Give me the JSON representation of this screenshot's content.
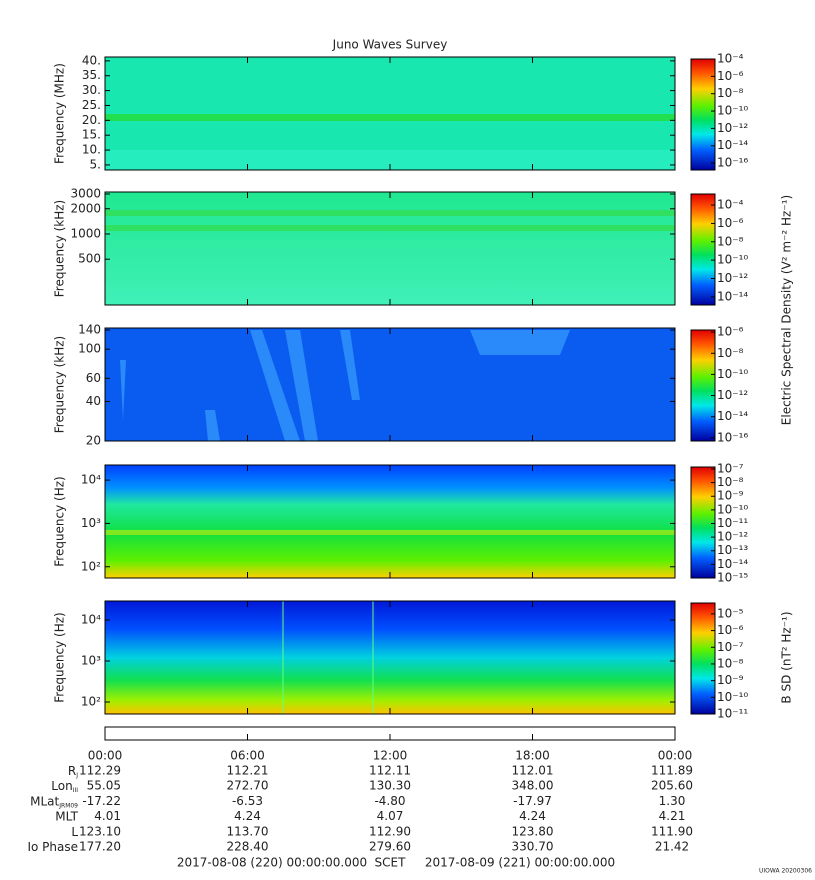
{
  "chart_data": [
    {
      "type": "spectrogram",
      "title": "Juno Waves Survey",
      "ylabel": "Frequency (MHz)",
      "log_y": false,
      "ylim": [
        3.3,
        41.3
      ],
      "yticks": [
        {
          "value": 5,
          "label": "5."
        },
        {
          "value": 10,
          "label": "10."
        },
        {
          "value": 15,
          "label": "15."
        },
        {
          "value": 20,
          "label": "20."
        },
        {
          "value": 25,
          "label": "25."
        },
        {
          "value": 30,
          "label": "30."
        },
        {
          "value": 35,
          "label": "35."
        },
        {
          "value": 40,
          "label": "40."
        }
      ],
      "colorbar": {
        "log": true,
        "lim": [
          1.6e-17,
          0.0001
        ],
        "ticks": [
          {
            "value": 0.0001,
            "label": "10⁻⁴"
          },
          {
            "value": 1e-06,
            "label": "10⁻⁶"
          },
          {
            "value": 1e-08,
            "label": "10⁻⁸"
          },
          {
            "value": 1e-10,
            "label": "10⁻¹⁰"
          },
          {
            "value": 1e-12,
            "label": "10⁻¹²"
          },
          {
            "value": 1e-14,
            "label": "10⁻¹⁴"
          },
          {
            "value": 1e-16,
            "label": "10⁻¹⁶"
          }
        ]
      }
    },
    {
      "type": "spectrogram",
      "ylabel": "Frequency (kHz)",
      "log_y": true,
      "ylim": [
        142,
        3170
      ],
      "yticks": [
        3000,
        2000,
        1000,
        500
      ],
      "colorbar": {
        "log": true,
        "lim": [
          1.3e-15,
          0.0016
        ],
        "label": "Electric Spectral Density (V² m⁻² Hz⁻¹)",
        "ticks": [
          {
            "value": 0.0001,
            "label": "10⁻⁴"
          },
          {
            "value": 1e-06,
            "label": "10⁻⁶"
          },
          {
            "value": 1e-08,
            "label": "10⁻⁸"
          },
          {
            "value": 1e-10,
            "label": "10⁻¹⁰"
          },
          {
            "value": 1e-12,
            "label": "10⁻¹²"
          },
          {
            "value": 1e-14,
            "label": "10⁻¹⁴"
          }
        ]
      }
    },
    {
      "type": "spectrogram",
      "ylabel": "Frequency (kHz)",
      "log_y": true,
      "ylim": [
        20,
        145
      ],
      "yticks": [
        140,
        100,
        60,
        40,
        20
      ],
      "colorbar": {
        "log": true,
        "lim": [
          5e-17,
          1.6e-06
        ],
        "ticks": [
          {
            "value": 1e-06,
            "label": "10⁻⁶"
          },
          {
            "value": 1e-08,
            "label": "10⁻⁸"
          },
          {
            "value": 1e-10,
            "label": "10⁻¹⁰"
          },
          {
            "value": 1e-12,
            "label": "10⁻¹²"
          },
          {
            "value": 1e-14,
            "label": "10⁻¹⁴"
          },
          {
            "value": 1e-16,
            "label": "10⁻¹⁶"
          }
        ]
      }
    },
    {
      "type": "spectrogram",
      "ylabel": "Frequency (Hz)",
      "log_y": true,
      "ylim": [
        55,
        22300
      ],
      "yticks": [
        {
          "value": 10000,
          "label": "10⁴"
        },
        {
          "value": 1000,
          "label": "10³"
        },
        {
          "value": 100,
          "label": "10²"
        }
      ],
      "colorbar": {
        "log": true,
        "lim": [
          1e-15,
          1.4e-07
        ],
        "ticks": [
          {
            "value": 1e-07,
            "label": "10⁻⁷"
          },
          {
            "value": 1e-08,
            "label": "10⁻⁸"
          },
          {
            "value": 1e-09,
            "label": "10⁻⁹"
          },
          {
            "value": 1e-10,
            "label": "10⁻¹⁰"
          },
          {
            "value": 1e-11,
            "label": "10⁻¹¹"
          },
          {
            "value": 1e-12,
            "label": "10⁻¹²"
          },
          {
            "value": 1e-13,
            "label": "10⁻¹³"
          },
          {
            "value": 1e-14,
            "label": "10⁻¹⁴"
          },
          {
            "value": 1e-15,
            "label": "10⁻¹⁵"
          }
        ]
      }
    },
    {
      "type": "spectrogram",
      "ylabel": "Frequency (Hz)",
      "log_y": true,
      "ylim": [
        51,
        29000
      ],
      "yticks": [
        {
          "value": 10000,
          "label": "10⁴"
        },
        {
          "value": 1000,
          "label": "10³"
        },
        {
          "value": 100,
          "label": "10²"
        }
      ],
      "colorbar": {
        "log": true,
        "lim": [
          1e-11,
          4.5e-05
        ],
        "label": "B SD (nT² Hz⁻¹)",
        "ticks": [
          {
            "value": 1e-05,
            "label": "10⁻⁵"
          },
          {
            "value": 1e-06,
            "label": "10⁻⁶"
          },
          {
            "value": 1e-07,
            "label": "10⁻⁷"
          },
          {
            "value": 1e-08,
            "label": "10⁻⁸"
          },
          {
            "value": 1e-09,
            "label": "10⁻⁹"
          },
          {
            "value": 1e-10,
            "label": "10⁻¹⁰"
          },
          {
            "value": 1e-11,
            "label": "10⁻¹¹"
          }
        ]
      }
    }
  ],
  "time_axis": {
    "xlim": [
      0,
      24
    ],
    "xticks": [
      {
        "value": 0,
        "label": "00:00"
      },
      {
        "value": 6,
        "label": "06:00"
      },
      {
        "value": 12,
        "label": "12:00"
      },
      {
        "value": 18,
        "label": "18:00"
      },
      {
        "value": 24,
        "label": "00:00"
      }
    ]
  },
  "ephemeris": [
    {
      "label": "R",
      "sub": "J",
      "values": [
        "112.29",
        "112.21",
        "112.11",
        "112.01",
        "111.89"
      ]
    },
    {
      "label": "Lon",
      "sub": "III",
      "values": [
        "55.05",
        "272.70",
        "130.30",
        "348.00",
        "205.60"
      ]
    },
    {
      "label": "MLat",
      "sub": "JRM09",
      "values": [
        "-17.22",
        "-6.53",
        "-4.80",
        "-17.97",
        "1.30"
      ]
    },
    {
      "label": "MLT",
      "values": [
        "4.01",
        "4.24",
        "4.07",
        "4.24",
        "4.21"
      ]
    },
    {
      "label": "L",
      "values": [
        "123.10",
        "113.70",
        "112.90",
        "123.80",
        "111.90"
      ]
    },
    {
      "label": "Io Phase",
      "values": [
        "177.20",
        "228.40",
        "279.60",
        "330.70",
        "21.42"
      ]
    }
  ],
  "footer": {
    "start": "2017-08-08 (220) 00:00:00.000",
    "center": "SCET",
    "end": "2017-08-09 (221) 00:00:00.000",
    "stamp": "UIOWA 20200306"
  }
}
